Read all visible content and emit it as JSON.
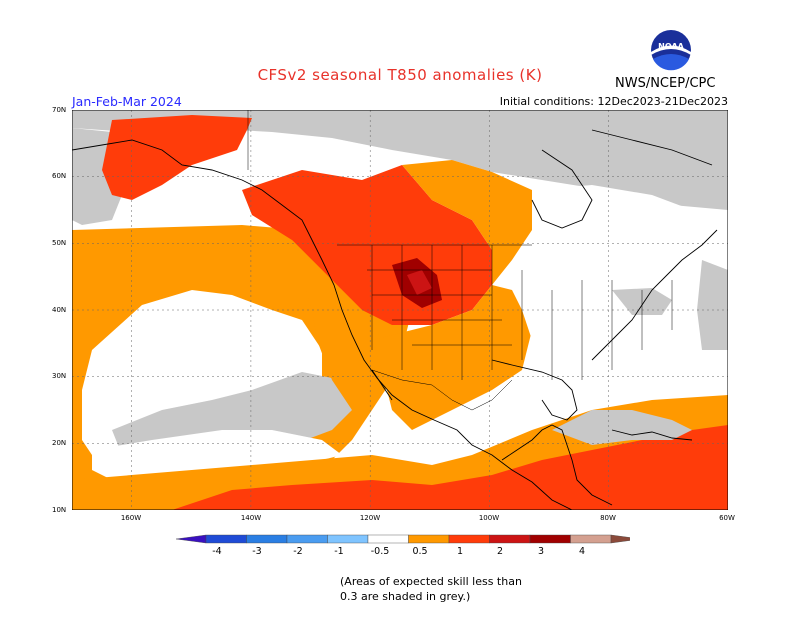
{
  "header": {
    "title": "CFSv2 seasonal T850 anomalies (K)",
    "period": "Jan-Feb-Mar 2024",
    "initial_conditions": "Initial conditions: 12Dec2023-21Dec2023",
    "agency": "NWS/NCEP/CPC",
    "logo_text": "NOAA"
  },
  "map": {
    "lat_labels": [
      "70N",
      "60N",
      "50N",
      "40N",
      "30N",
      "20N",
      "10N"
    ],
    "lon_labels": [
      "160W",
      "140W",
      "120W",
      "100W",
      "80W",
      "60W"
    ]
  },
  "colorbar": {
    "labels": [
      "-4",
      "-3",
      "-2",
      "-1",
      "-0.5",
      "0.5",
      "1",
      "2",
      "3",
      "4"
    ],
    "colors": [
      "#3a10c0",
      "#1f4bd6",
      "#2a7ee3",
      "#4a9cf0",
      "#7fc4ff",
      "#ffffff",
      "#ff9900",
      "#ff3c0a",
      "#cc1414",
      "#a00000",
      "#d4a090",
      "#8b4a3a"
    ]
  },
  "legend_colors": {
    "skill_grey": "#c8c8c8",
    "anom_05_1": "#ff9900",
    "anom_1_2": "#ff3c0a",
    "anom_2_3": "#cc1414",
    "anom_3_4": "#a00000"
  },
  "footnote": "(Areas of expected skill less than 0.3 are shaded in grey.)"
}
